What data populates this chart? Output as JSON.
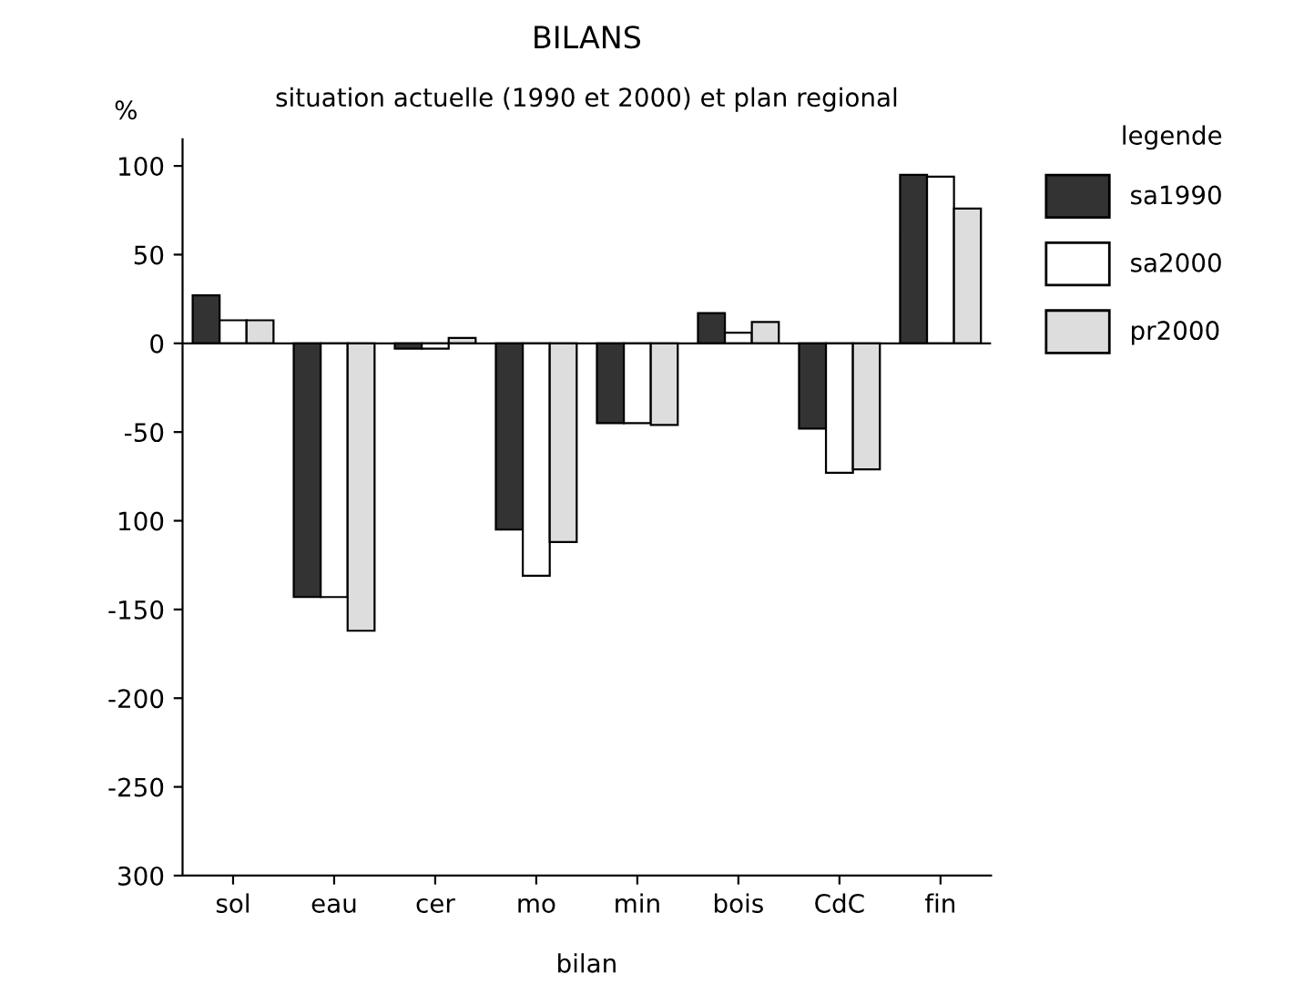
{
  "chart_data": {
    "type": "bar",
    "title": "BILANS",
    "subtitle": "situation actuelle (1990 et 2000) et plan regional",
    "xlabel": "bilan",
    "ylabel": "%",
    "legend_title": "legende",
    "categories": [
      "sol",
      "eau",
      "cer",
      "mo",
      "min",
      "bois",
      "CdC",
      "fin"
    ],
    "series": [
      {
        "name": "sa1990",
        "color": "#333333",
        "values": [
          27,
          -143,
          -3,
          -105,
          -45,
          17,
          -48,
          95
        ]
      },
      {
        "name": "sa2000",
        "color": "#ffffff",
        "values": [
          13,
          -143,
          -3,
          -131,
          -45,
          6,
          -73,
          94
        ]
      },
      {
        "name": "pr2000",
        "color": "#dddddd",
        "values": [
          13,
          -162,
          3,
          -112,
          -46,
          12,
          -71,
          76
        ]
      }
    ],
    "ylim": [
      -300,
      115
    ],
    "yticks": [
      100,
      50,
      0,
      -50,
      {
        "value": -100,
        "label": "100"
      },
      -150,
      -200,
      -250,
      {
        "value": -300,
        "label": "300"
      }
    ],
    "ref_lines": [
      {
        "axis": "y",
        "value": 0
      }
    ],
    "grid": false,
    "legend": "top right"
  }
}
